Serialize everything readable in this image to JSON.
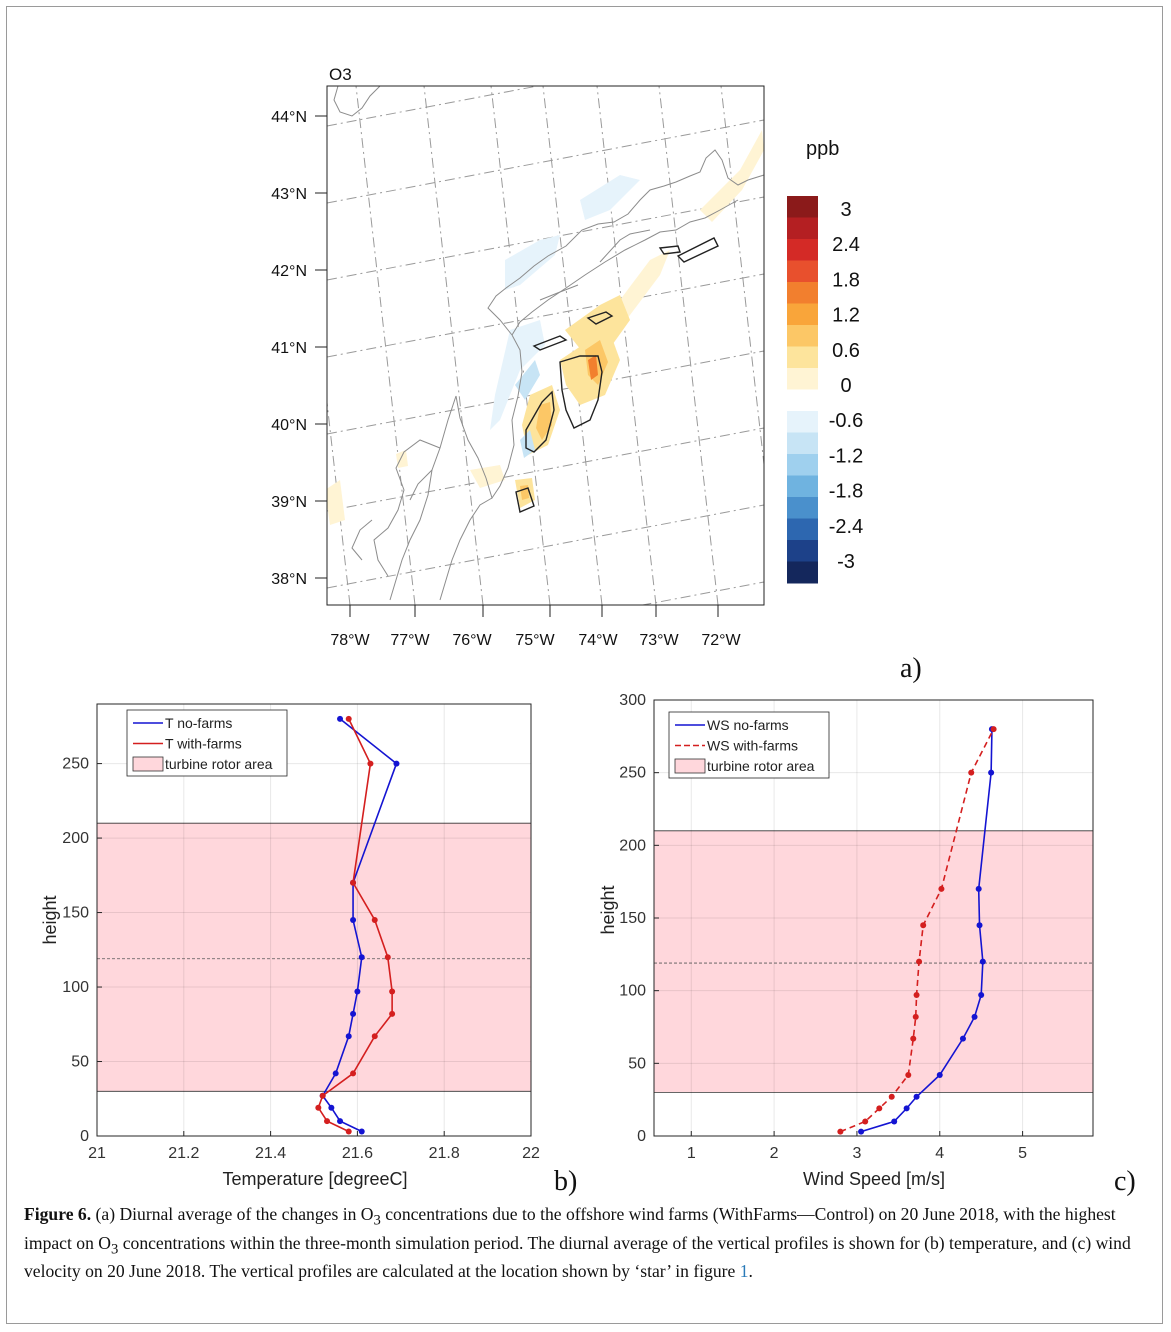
{
  "figure_label": "Figure 6.",
  "caption_parts": [
    "(a) Diurnal average of the changes in O",
    "3",
    " concentrations due to the offshore wind farms (WithFarms—Control) on 20 June 2018, with the highest impact on O",
    "3",
    " concentrations within the three-month simulation period. The diurnal average of the vertical profiles is shown for (b) temperature, and (c) wind velocity on 20 June 2018. The vertical profiles are calculated at the location shown by ‘star’ in figure ",
    "1",
    "."
  ],
  "chart_data": [
    {
      "type": "heatmap",
      "panel_label": "a)",
      "title": "O3",
      "lat_ticks": [
        "44°N",
        "43°N",
        "42°N",
        "41°N",
        "40°N",
        "39°N",
        "38°N"
      ],
      "lon_ticks": [
        "78°W",
        "77°W",
        "76°W",
        "75°W",
        "74°W",
        "73°W",
        "72°W"
      ],
      "colorbar": {
        "unit": "ppb",
        "labels": [
          "3",
          "2.4",
          "1.8",
          "1.2",
          "0.6",
          "0",
          "-0.6",
          "-1.2",
          "-1.8",
          "-2.4",
          "-3"
        ],
        "colors": [
          "#8b1a1a",
          "#b41f22",
          "#d42a26",
          "#e8502d",
          "#f27f2e",
          "#f9a53a",
          "#fcc766",
          "#fde49c",
          "#fff4d4",
          "#ffffff",
          "#e6f3fb",
          "#c7e4f5",
          "#9fd0ee",
          "#6fb3e0",
          "#4a90cc",
          "#2d67b0",
          "#1d4189",
          "#14275c"
        ]
      }
    },
    {
      "type": "line",
      "panel_label": "b)",
      "xlabel": "Temperature [degreeC]",
      "ylabel": "height",
      "xlim": [
        21,
        22
      ],
      "ylim": [
        0,
        290
      ],
      "xticks": [
        "21",
        "21.2",
        "21.4",
        "21.6",
        "21.8",
        "22"
      ],
      "yticks": [
        "0",
        "50",
        "100",
        "150",
        "200",
        "250"
      ],
      "rotor_area": [
        30,
        210
      ],
      "hub_height": 119,
      "legend": [
        "T no-farms",
        "T with-farms",
        "turbine rotor area"
      ],
      "series": [
        {
          "name": "T no-farms",
          "color": "#1414d2",
          "dashed": false,
          "x": [
            21.61,
            21.56,
            21.54,
            21.52,
            21.55,
            21.58,
            21.59,
            21.6,
            21.61,
            21.59,
            21.59,
            21.69,
            21.56
          ],
          "y": [
            3,
            10,
            19,
            27,
            42,
            67,
            82,
            97,
            120,
            145,
            170,
            250,
            280
          ]
        },
        {
          "name": "T with-farms",
          "color": "#d41f1f",
          "dashed": false,
          "x": [
            21.58,
            21.53,
            21.51,
            21.52,
            21.59,
            21.64,
            21.68,
            21.68,
            21.67,
            21.64,
            21.59,
            21.63,
            21.58
          ],
          "y": [
            3,
            10,
            19,
            27,
            42,
            67,
            82,
            97,
            120,
            145,
            170,
            250,
            280
          ]
        }
      ]
    },
    {
      "type": "line",
      "panel_label": "c)",
      "xlabel": "Wind Speed [m/s]",
      "ylabel": "height",
      "xlim": [
        0.55,
        5.85
      ],
      "ylim": [
        0,
        300
      ],
      "xticks": [
        "1",
        "2",
        "3",
        "4",
        "5"
      ],
      "yticks": [
        "0",
        "50",
        "100",
        "150",
        "200",
        "250",
        "300"
      ],
      "rotor_area": [
        30,
        210
      ],
      "hub_height": 119,
      "legend": [
        "WS no-farms",
        "WS with-farms",
        "turbine rotor area"
      ],
      "series": [
        {
          "name": "WS no-farms",
          "color": "#1414d2",
          "dashed": false,
          "x": [
            3.05,
            3.45,
            3.6,
            3.72,
            4.0,
            4.28,
            4.42,
            4.5,
            4.52,
            4.48,
            4.47,
            4.62,
            4.63
          ],
          "y": [
            3,
            10,
            19,
            27,
            42,
            67,
            82,
            97,
            120,
            145,
            170,
            250,
            280
          ]
        },
        {
          "name": "WS with-farms",
          "color": "#d41f1f",
          "dashed": true,
          "x": [
            2.8,
            3.1,
            3.27,
            3.42,
            3.62,
            3.68,
            3.71,
            3.72,
            3.75,
            3.8,
            4.02,
            4.38,
            4.65
          ],
          "y": [
            3,
            10,
            19,
            27,
            42,
            67,
            82,
            97,
            120,
            145,
            170,
            250,
            280
          ]
        }
      ]
    }
  ]
}
